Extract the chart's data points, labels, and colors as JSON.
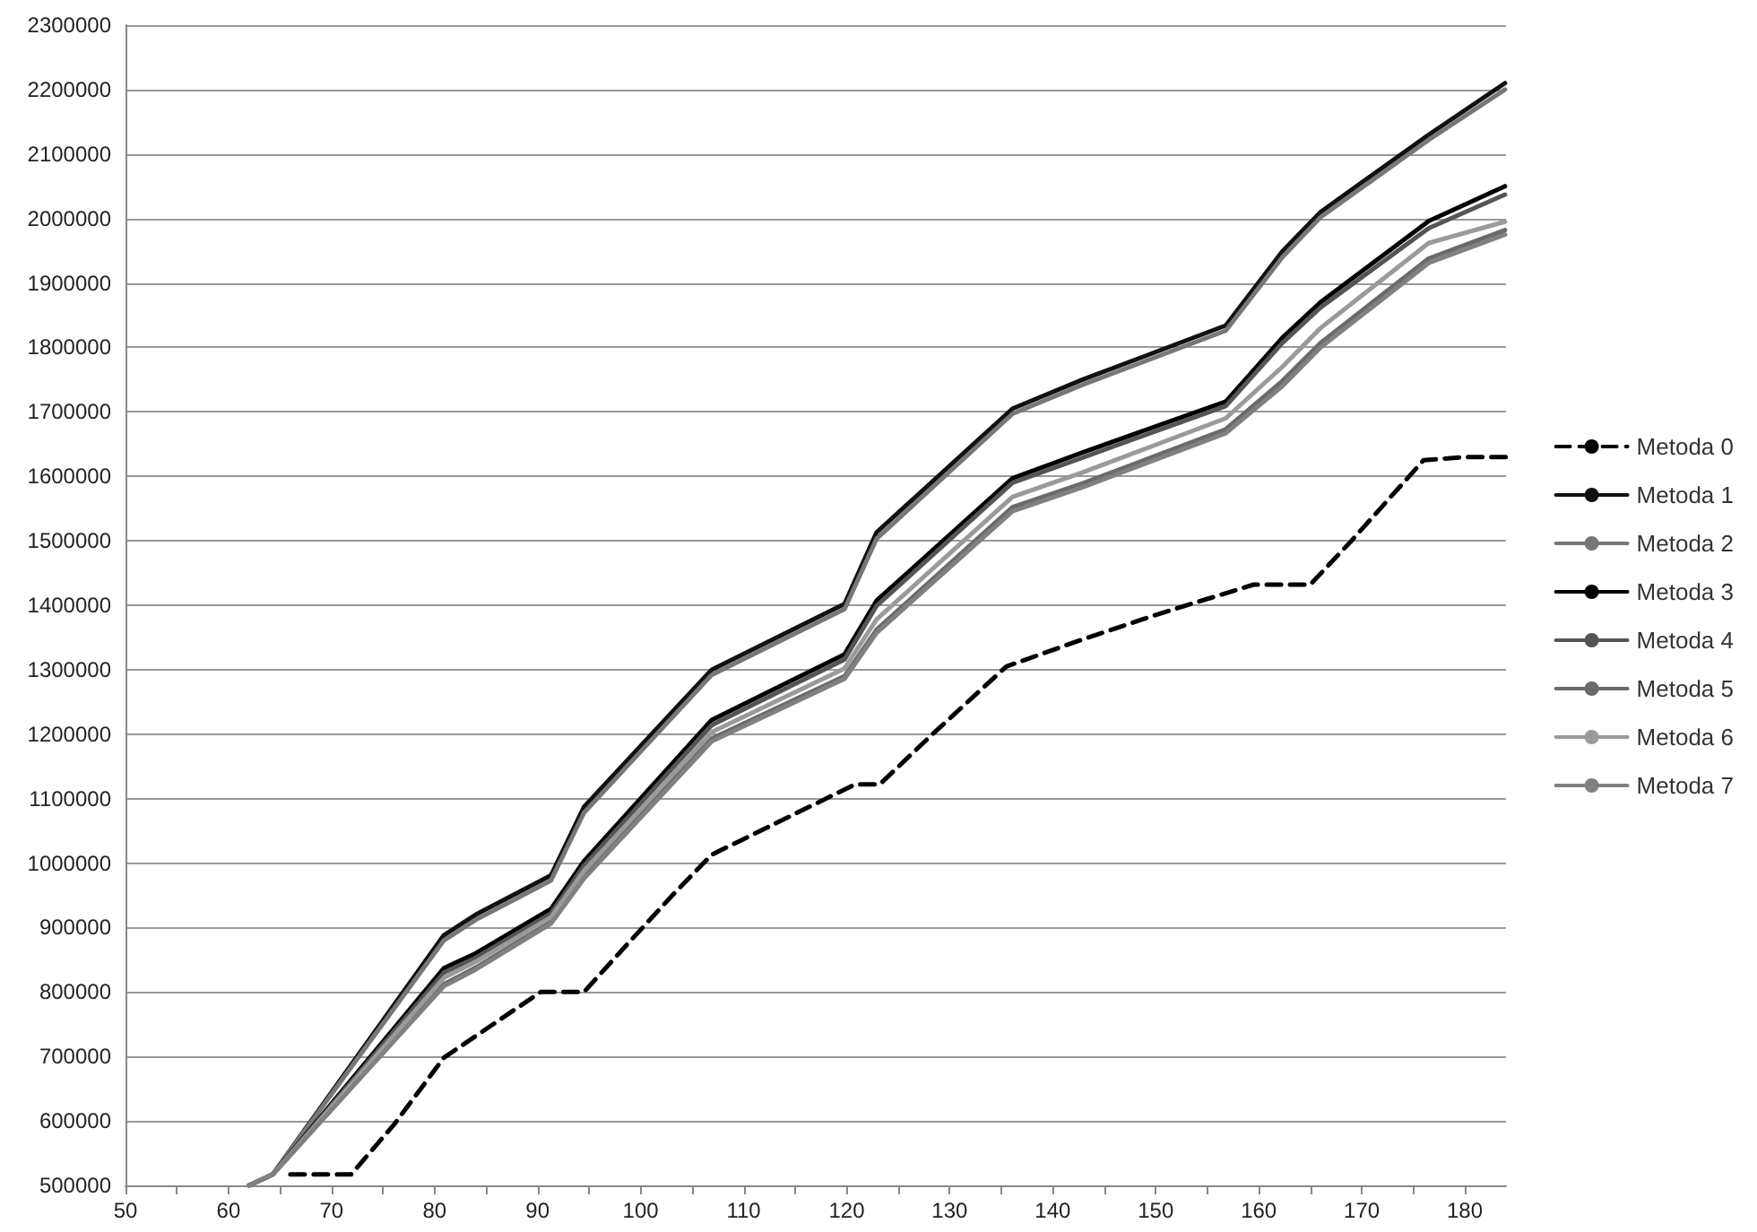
{
  "chart_data": {
    "type": "line",
    "x": [
      62,
      64.3,
      80.9,
      84,
      91.3,
      94.5,
      106.9,
      119.8,
      122.9,
      136.1,
      142.9,
      156.8,
      162.3,
      166,
      176.5,
      183.9
    ],
    "series": [
      {
        "name": "Metoda 0",
        "color": "#000000",
        "line_style": "dashed",
        "x": [
          66,
          71.9,
          76.1,
          80.9,
          90.3,
          94.5,
          98.7,
          103.2,
          106.9,
          120.8,
          123.2,
          128.2,
          135.5,
          142.9,
          150,
          159.5,
          165,
          169,
          176,
          180,
          184
        ],
        "values": [
          517000,
          517000,
          595000,
          698000,
          800000,
          800000,
          874000,
          952000,
          1013000,
          1122000,
          1122000,
          1198000,
          1305000,
          1347000,
          1385000,
          1432000,
          1432000,
          1500000,
          1625000,
          1630000,
          1630000
        ]
      },
      {
        "name": "Metoda 1",
        "color": "#111111",
        "values": [
          500000,
          517000,
          888000,
          920000,
          981000,
          1087000,
          1300000,
          1402000,
          1513000,
          1705000,
          1750000,
          1834000,
          1949000,
          2010000,
          2130000,
          2210000
        ]
      },
      {
        "name": "Metoda 2",
        "color": "#777777",
        "values": [
          500000,
          517000,
          880000,
          912000,
          973000,
          1078000,
          1292000,
          1394000,
          1503000,
          1697000,
          1742000,
          1826000,
          1940000,
          2002000,
          2122000,
          2200000
        ]
      },
      {
        "name": "Metoda 3",
        "color": "#000000",
        "values": [
          500000,
          517000,
          837000,
          860000,
          929000,
          1003000,
          1222000,
          1324000,
          1407000,
          1597000,
          1637000,
          1716000,
          1815000,
          1870000,
          1996000,
          2050000
        ]
      },
      {
        "name": "Metoda 4",
        "color": "#555555",
        "values": [
          500000,
          517000,
          830000,
          853000,
          922000,
          996000,
          1214000,
          1316000,
          1399000,
          1590000,
          1629000,
          1709000,
          1807000,
          1862000,
          1985000,
          2037000
        ]
      },
      {
        "name": "Metoda 5",
        "color": "#6a6a6a",
        "values": [
          500000,
          517000,
          812000,
          838000,
          909000,
          980000,
          1193000,
          1290000,
          1362000,
          1552000,
          1589000,
          1673000,
          1748000,
          1807000,
          1938000,
          1982000
        ]
      },
      {
        "name": "Metoda 6",
        "color": "#9a9a9a",
        "values": [
          500000,
          517000,
          822000,
          847000,
          916000,
          988000,
          1203000,
          1302000,
          1378000,
          1568000,
          1606000,
          1690000,
          1770000,
          1830000,
          1962000,
          1995000
        ]
      },
      {
        "name": "Metoda 7",
        "color": "#808080",
        "values": [
          500000,
          517000,
          809000,
          835000,
          906000,
          976000,
          1189000,
          1286000,
          1357000,
          1546000,
          1583000,
          1667000,
          1740000,
          1800000,
          1931000,
          1975000
        ]
      }
    ],
    "xlim": [
      50,
      184
    ],
    "xticks": [
      50,
      {
        "value": 55,
        "label": null
      },
      60,
      {
        "value": 65,
        "label": null
      },
      70,
      {
        "value": 75,
        "label": null
      },
      80,
      {
        "value": 85,
        "label": null
      },
      90,
      {
        "value": 95,
        "label": null
      },
      100,
      {
        "value": 105,
        "label": null
      },
      110,
      {
        "value": 115,
        "label": null
      },
      120,
      {
        "value": 125,
        "label": null
      },
      130,
      {
        "value": 135,
        "label": null
      },
      140,
      {
        "value": 145,
        "label": null
      },
      150,
      {
        "value": 155,
        "label": null
      },
      160,
      {
        "value": 165,
        "label": null
      },
      170,
      {
        "value": 175,
        "label": null
      },
      180
    ],
    "ylim": [
      500000,
      2300000
    ],
    "yticks": [
      500000,
      600000,
      700000,
      800000,
      900000,
      1000000,
      1100000,
      1200000,
      1300000,
      1400000,
      1500000,
      1600000,
      1700000,
      1800000,
      1900000,
      2000000,
      2100000,
      2200000,
      2300000
    ],
    "grid": "y",
    "legend": "right",
    "marker": "none",
    "line_style": "solid"
  }
}
